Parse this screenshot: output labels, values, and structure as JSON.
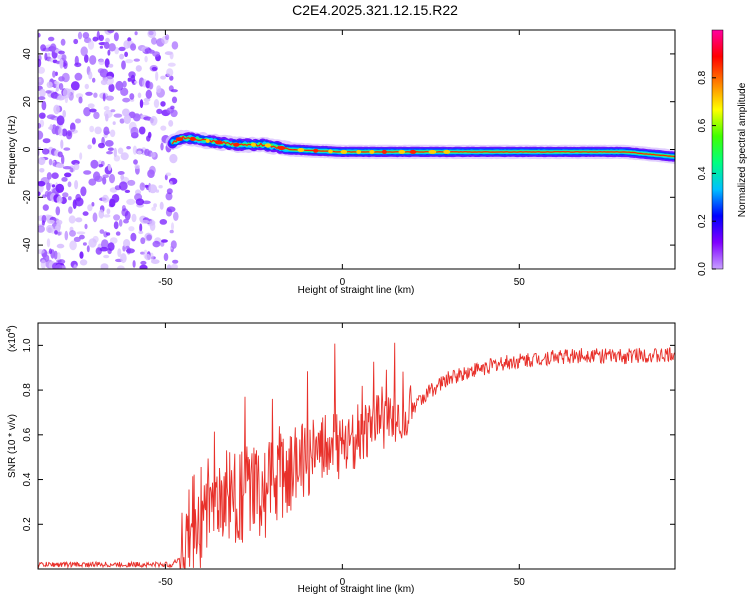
{
  "title": "C2E4.2025.321.12.15.R22",
  "chart_data": [
    {
      "type": "heatmap",
      "title": "",
      "xlabel": "Height of straight line (km)",
      "ylabel": "Frequency (Hz)",
      "xlim": [
        -86,
        94
      ],
      "ylim": [
        -50,
        50
      ],
      "xticks": [
        -50,
        0,
        50
      ],
      "yticks": [
        -40,
        -20,
        0,
        20,
        40
      ],
      "colorbar": {
        "label": "Normalized spectral amplitude",
        "range": [
          0,
          1
        ],
        "ticks": [
          "0.0",
          "0.2",
          "0.4",
          "0.6",
          "0.8"
        ],
        "tick_values": [
          0,
          0.2,
          0.4,
          0.6,
          0.8
        ],
        "colormap": [
          "#c8a0ff",
          "#8000ff",
          "#0000ff",
          "#00c0ff",
          "#00ff80",
          "#40ff00",
          "#ffff00",
          "#ff8000",
          "#ff0000",
          "#ff00a0"
        ]
      },
      "features": {
        "noise_region_x": [
          -86,
          -47
        ],
        "ridge": [
          {
            "x": -48,
            "freq": 3
          },
          {
            "x": -45,
            "freq": 5
          },
          {
            "x": -40,
            "freq": 4
          },
          {
            "x": -30,
            "freq": 2
          },
          {
            "x": -22,
            "freq": 2
          },
          {
            "x": -15,
            "freq": 0
          },
          {
            "x": 0,
            "freq": -1
          },
          {
            "x": 20,
            "freq": -1
          },
          {
            "x": 50,
            "freq": -1
          },
          {
            "x": 80,
            "freq": -1
          },
          {
            "x": 94,
            "freq": -3
          }
        ]
      }
    },
    {
      "type": "line",
      "title": "",
      "xlabel": "Height of straight line (km)",
      "ylabel": "SNR (10 * v/v)",
      "y_multiplier": "(x10",
      "y_multiplier_exp": "4",
      "y_multiplier_close": ")",
      "xlim": [
        -86,
        94
      ],
      "ylim": [
        0,
        1.1
      ],
      "xticks": [
        -50,
        0,
        50
      ],
      "yticks": [
        "0.2",
        "0.4",
        "0.6",
        "0.8",
        "1.0"
      ],
      "ytick_values": [
        0.2,
        0.4,
        0.6,
        0.8,
        1.0
      ],
      "series": [
        {
          "name": "SNR",
          "color": "#e8302a",
          "x": [
            -86,
            -60,
            -48,
            -46,
            -44,
            -42,
            -40,
            -38,
            -36,
            -34,
            -32,
            -30,
            -28,
            -26,
            -24,
            -22,
            -20,
            -18,
            -16,
            -14,
            -12,
            -10,
            -8,
            -6,
            -4,
            -2,
            0,
            2,
            4,
            6,
            8,
            10,
            12,
            14,
            16,
            18,
            20,
            25,
            30,
            35,
            40,
            45,
            50,
            55,
            60,
            65,
            70,
            75,
            80,
            85,
            90,
            94
          ],
          "values": [
            0.02,
            0.02,
            0.02,
            0.05,
            0.1,
            0.2,
            0.25,
            0.3,
            0.28,
            0.3,
            0.32,
            0.33,
            0.32,
            0.34,
            0.36,
            0.33,
            0.38,
            0.4,
            0.42,
            0.45,
            0.48,
            0.5,
            0.52,
            0.5,
            0.55,
            0.55,
            0.55,
            0.58,
            0.6,
            0.6,
            0.62,
            0.65,
            0.65,
            0.68,
            0.7,
            0.7,
            0.72,
            0.8,
            0.85,
            0.88,
            0.9,
            0.92,
            0.93,
            0.94,
            0.95,
            0.95,
            0.96,
            0.95,
            0.95,
            0.96,
            0.95,
            0.96
          ]
        }
      ]
    }
  ]
}
